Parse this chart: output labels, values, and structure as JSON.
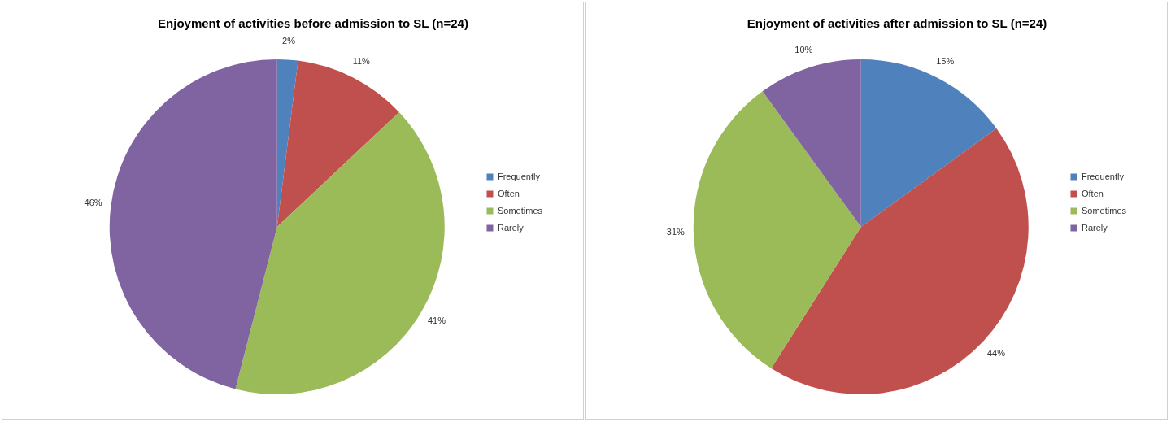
{
  "chart_data": [
    {
      "type": "pie",
      "title": "Enjoyment of activities before admission to SL (n=24)",
      "categories": [
        "Frequently",
        "Often",
        "Sometimes",
        "Rarely"
      ],
      "values": [
        2,
        11,
        41,
        46
      ],
      "colors": [
        "#4f81bd",
        "#c0504d",
        "#9bbb59",
        "#8064a2"
      ],
      "value_labels": [
        "2%",
        "11%",
        "41%",
        "46%"
      ],
      "legend": "right"
    },
    {
      "type": "pie",
      "title": "Enjoyment of activities after admission to SL (n=24)",
      "categories": [
        "Frequently",
        "Often",
        "Sometimes",
        "Rarely"
      ],
      "values": [
        15,
        44,
        31,
        10
      ],
      "colors": [
        "#4f81bd",
        "#c0504d",
        "#9bbb59",
        "#8064a2"
      ],
      "value_labels": [
        "15%",
        "44%",
        "31%",
        "10%"
      ],
      "legend": "right"
    }
  ]
}
